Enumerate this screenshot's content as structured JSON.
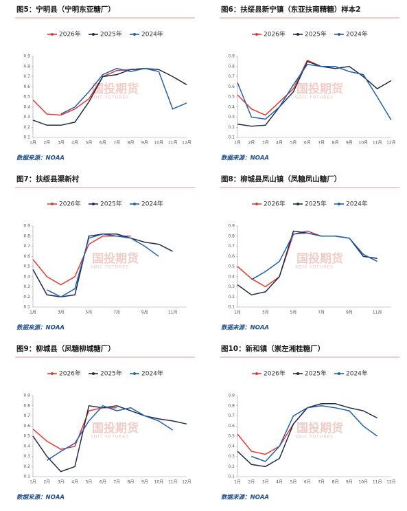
{
  "watermark": {
    "name": "国投期货",
    "sub": "SDIC FUTURES"
  },
  "chart_data": [
    {
      "type": "line",
      "title": "图5：宁明县（宁明东亚糖厂）",
      "source": "数据来源：NOAA",
      "categories": [
        "1月",
        "2月",
        "3月",
        "4月",
        "5月",
        "6月",
        "7月",
        "8月",
        "9月",
        "10月",
        "11月",
        "12月"
      ],
      "series": [
        {
          "name": "2026年",
          "color": "#e8382b",
          "values": [
            0.47,
            0.33,
            0.32,
            0.38,
            0.48,
            0.7,
            0.76,
            0.77,
            0.78,
            null,
            null,
            null
          ]
        },
        {
          "name": "2025年",
          "color": "#1f2a44",
          "values": [
            0.27,
            0.22,
            0.22,
            0.25,
            0.45,
            0.7,
            0.72,
            0.77,
            0.78,
            0.77,
            0.7,
            0.62
          ]
        },
        {
          "name": "2024年",
          "color": "#1f5fb3",
          "values": [
            null,
            null,
            0.33,
            0.4,
            0.55,
            0.72,
            0.78,
            0.75,
            0.78,
            0.75,
            0.38,
            0.44
          ]
        }
      ],
      "ylim": [
        0.1,
        0.9
      ],
      "yticks": [
        0.1,
        0.2,
        0.3,
        0.4,
        0.5,
        0.6,
        0.7,
        0.8,
        0.9
      ]
    },
    {
      "type": "line",
      "title": "图6：扶绥县新宁镇（东亚扶南精糖）样本2",
      "source": "数据来源：NOAA",
      "categories": [
        "1月",
        "2月",
        "3月",
        "4月",
        "5月",
        "6月",
        "7月",
        "8月",
        "9月",
        "10月",
        "11月",
        "12月"
      ],
      "series": [
        {
          "name": "2026年",
          "color": "#e8382b",
          "values": [
            0.52,
            0.38,
            0.32,
            0.45,
            0.58,
            0.86,
            0.8,
            0.8,
            null,
            null,
            null,
            null
          ]
        },
        {
          "name": "2025年",
          "color": "#1f2a44",
          "values": [
            0.23,
            0.21,
            0.22,
            0.4,
            0.55,
            0.85,
            0.8,
            0.78,
            0.8,
            0.7,
            0.58,
            0.66
          ]
        },
        {
          "name": "2024年",
          "color": "#1f5fb3",
          "values": [
            0.64,
            0.3,
            0.28,
            0.4,
            0.62,
            0.82,
            0.8,
            0.8,
            0.75,
            0.72,
            0.5,
            0.27
          ]
        }
      ],
      "ylim": [
        0.1,
        0.9
      ],
      "yticks": [
        0.1,
        0.2,
        0.3,
        0.4,
        0.5,
        0.6,
        0.7,
        0.8,
        0.9
      ]
    },
    {
      "type": "line",
      "title": "图7：扶绥县渠新村",
      "source": "数据来源：NOAA",
      "categories": [
        "1月",
        null,
        "3月",
        null,
        "5月",
        null,
        "7月",
        null,
        "9月",
        null,
        "11月",
        null
      ],
      "series": [
        {
          "name": "2026年",
          "color": "#e8382b",
          "values": [
            0.57,
            0.4,
            0.32,
            0.4,
            0.72,
            0.8,
            0.8,
            0.8,
            null,
            null,
            null,
            null
          ]
        },
        {
          "name": "2025年",
          "color": "#1f2a44",
          "values": [
            0.47,
            0.22,
            0.2,
            0.22,
            0.8,
            0.82,
            0.82,
            0.78,
            0.74,
            0.72,
            0.65,
            null
          ]
        },
        {
          "name": "2024年",
          "color": "#1f5fb3",
          "values": [
            null,
            0.27,
            0.2,
            0.28,
            0.78,
            0.82,
            0.8,
            0.78,
            0.7,
            0.6,
            null,
            null
          ]
        }
      ],
      "ylim": [
        0.1,
        0.9
      ],
      "yticks": [
        0.1,
        0.2,
        0.3,
        0.4,
        0.5,
        0.6,
        0.7,
        0.8,
        0.9
      ]
    },
    {
      "type": "line",
      "title": "图8：柳城县凤山镇（凤糖凤山糖厂）",
      "source": "数据来源：NOAA",
      "categories": [
        "1月",
        null,
        "3月",
        null,
        "5月",
        null,
        "7月",
        null,
        "9月",
        null,
        "11月",
        null
      ],
      "series": [
        {
          "name": "2026年",
          "color": "#e8382b",
          "values": [
            0.5,
            0.38,
            0.3,
            0.4,
            0.82,
            0.85,
            0.8,
            0.8,
            null,
            null,
            null,
            null
          ]
        },
        {
          "name": "2025年",
          "color": "#1f2a44",
          "values": [
            0.32,
            0.22,
            0.25,
            0.4,
            0.85,
            0.83,
            0.8,
            0.8,
            0.78,
            0.6,
            0.58,
            null
          ]
        },
        {
          "name": "2024年",
          "color": "#1f5fb3",
          "values": [
            null,
            0.37,
            0.45,
            0.55,
            0.82,
            0.83,
            0.8,
            0.8,
            0.78,
            0.62,
            0.55,
            null
          ]
        }
      ],
      "ylim": [
        0.1,
        0.9
      ],
      "yticks": [
        0.1,
        0.2,
        0.3,
        0.4,
        0.5,
        0.6,
        0.7,
        0.8,
        0.9
      ]
    },
    {
      "type": "line",
      "title": "图9：柳城县（凤糖柳城糖厂）",
      "source": "数据来源：NOAA",
      "categories": [
        "1月",
        "2月",
        "3月",
        "4月",
        "5月",
        "6月",
        "7月",
        "8月",
        "9月",
        "10月",
        "11月",
        "12月"
      ],
      "series": [
        {
          "name": "2026年",
          "color": "#e8382b",
          "values": [
            0.57,
            0.45,
            0.37,
            0.4,
            0.75,
            0.78,
            0.78,
            null,
            null,
            null,
            null,
            null
          ]
        },
        {
          "name": "2025年",
          "color": "#1f2a44",
          "values": [
            0.5,
            0.3,
            0.15,
            0.2,
            0.8,
            0.78,
            0.8,
            0.75,
            0.7,
            0.67,
            0.65,
            0.62
          ]
        },
        {
          "name": "2024年",
          "color": "#1f5fb3",
          "values": [
            null,
            0.26,
            0.35,
            0.43,
            0.65,
            0.8,
            0.75,
            0.78,
            0.7,
            0.65,
            0.56,
            null
          ]
        }
      ],
      "ylim": [
        0.1,
        0.9
      ],
      "yticks": [
        0.1,
        0.2,
        0.3,
        0.4,
        0.5,
        0.6,
        0.7,
        0.8,
        0.9
      ]
    },
    {
      "type": "line",
      "title": "图10：新和镇（崇左湘桂糖厂）",
      "source": "数据来源：NOAA",
      "categories": [
        "1月",
        "2月",
        "3月",
        "4月",
        "5月",
        "6月",
        "7月",
        "8月",
        "9月",
        "10月",
        "11月",
        "12月"
      ],
      "series": [
        {
          "name": "2026年",
          "color": "#e8382b",
          "values": [
            0.52,
            0.35,
            0.32,
            0.4,
            0.62,
            0.78,
            0.82,
            null,
            null,
            null,
            null,
            null
          ]
        },
        {
          "name": "2025年",
          "color": "#1f2a44",
          "values": [
            0.35,
            0.22,
            0.2,
            0.28,
            0.62,
            0.78,
            0.82,
            0.82,
            0.78,
            0.75,
            0.68,
            null
          ]
        },
        {
          "name": "2024年",
          "color": "#1f5fb3",
          "values": [
            null,
            0.3,
            0.25,
            0.4,
            0.7,
            0.78,
            0.8,
            0.78,
            0.75,
            0.6,
            0.5,
            null
          ]
        }
      ],
      "ylim": [
        0.1,
        0.9
      ],
      "yticks": [
        0.1,
        0.2,
        0.3,
        0.4,
        0.5,
        0.6,
        0.7,
        0.8,
        0.9
      ]
    }
  ]
}
